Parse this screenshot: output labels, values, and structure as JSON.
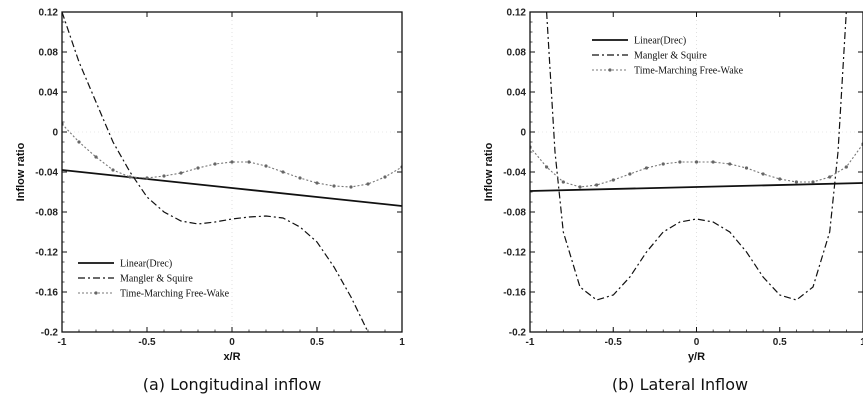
{
  "chart_data": [
    {
      "type": "line",
      "caption": "(a) Longitudinal inflow",
      "xlabel": "x/R",
      "ylabel": "Inflow ratio",
      "xlim": [
        -1,
        1
      ],
      "ylim": [
        -0.2,
        0.12
      ],
      "xticks": [
        "-1",
        "-0.5",
        "0",
        "0.5",
        "1"
      ],
      "yticks": [
        "0.12",
        "0.08",
        "0.04",
        "0",
        "-0.04",
        "-0.08",
        "-0.12",
        "-0.16",
        "-0.2"
      ],
      "legend_position": "bottom-left",
      "series": [
        {
          "name": "Linear(Drec)",
          "style": "solid",
          "x": [
            -1,
            -0.5,
            0,
            0.5,
            1
          ],
          "y": [
            -0.038,
            -0.047,
            -0.056,
            -0.065,
            -0.074
          ]
        },
        {
          "name": "Mangler & Squire",
          "style": "dashdot",
          "x": [
            -1,
            -0.9,
            -0.8,
            -0.7,
            -0.6,
            -0.5,
            -0.4,
            -0.3,
            -0.2,
            -0.1,
            0,
            0.1,
            0.2,
            0.3,
            0.4,
            0.5,
            0.6,
            0.7,
            0.8
          ],
          "y": [
            0.12,
            0.07,
            0.03,
            -0.01,
            -0.04,
            -0.065,
            -0.08,
            -0.089,
            -0.092,
            -0.09,
            -0.087,
            -0.085,
            -0.084,
            -0.086,
            -0.095,
            -0.11,
            -0.135,
            -0.165,
            -0.2
          ]
        },
        {
          "name": "Time-Marching Free-Wake",
          "style": "dotted-marker",
          "x": [
            -1,
            -0.9,
            -0.8,
            -0.7,
            -0.6,
            -0.5,
            -0.4,
            -0.3,
            -0.2,
            -0.1,
            0,
            0.1,
            0.2,
            0.3,
            0.4,
            0.5,
            0.6,
            0.7,
            0.8,
            0.9,
            1
          ],
          "y": [
            0.008,
            -0.01,
            -0.025,
            -0.038,
            -0.045,
            -0.046,
            -0.044,
            -0.041,
            -0.036,
            -0.032,
            -0.03,
            -0.03,
            -0.034,
            -0.04,
            -0.046,
            -0.051,
            -0.054,
            -0.055,
            -0.052,
            -0.045,
            -0.035
          ]
        }
      ]
    },
    {
      "type": "line",
      "caption": "(b) Lateral Inflow",
      "xlabel": "y/R",
      "ylabel": "Inflow ratio",
      "xlim": [
        -1,
        1
      ],
      "ylim": [
        -0.2,
        0.12
      ],
      "xticks": [
        "-1",
        "-0.5",
        "0",
        "0.5",
        "1"
      ],
      "yticks": [
        "0.12",
        "0.08",
        "0.04",
        "0",
        "-0.04",
        "-0.08",
        "-0.12",
        "-0.16",
        "-0.2"
      ],
      "legend_position": "top-left",
      "series": [
        {
          "name": "Linear(Drec)",
          "style": "solid",
          "x": [
            -1,
            1
          ],
          "y": [
            -0.059,
            -0.051
          ]
        },
        {
          "name": "Mangler & Squire",
          "style": "dashdot",
          "x": [
            -0.9,
            -0.85,
            -0.8,
            -0.7,
            -0.6,
            -0.5,
            -0.4,
            -0.3,
            -0.2,
            -0.1,
            0,
            0.1,
            0.2,
            0.3,
            0.4,
            0.5,
            0.6,
            0.7,
            0.8,
            0.85,
            0.9
          ],
          "y": [
            0.12,
            -0.02,
            -0.1,
            -0.155,
            -0.168,
            -0.163,
            -0.145,
            -0.12,
            -0.1,
            -0.09,
            -0.087,
            -0.09,
            -0.1,
            -0.12,
            -0.145,
            -0.163,
            -0.168,
            -0.155,
            -0.1,
            -0.02,
            0.12
          ]
        },
        {
          "name": "Time-Marching Free-Wake",
          "style": "dotted-marker",
          "x": [
            -1,
            -0.9,
            -0.8,
            -0.7,
            -0.6,
            -0.5,
            -0.4,
            -0.3,
            -0.2,
            -0.1,
            0,
            0.1,
            0.2,
            0.3,
            0.4,
            0.5,
            0.6,
            0.7,
            0.8,
            0.9,
            1
          ],
          "y": [
            -0.015,
            -0.035,
            -0.05,
            -0.055,
            -0.053,
            -0.048,
            -0.042,
            -0.036,
            -0.032,
            -0.03,
            -0.03,
            -0.03,
            -0.032,
            -0.036,
            -0.042,
            -0.047,
            -0.05,
            -0.05,
            -0.045,
            -0.035,
            -0.012
          ]
        }
      ]
    }
  ]
}
